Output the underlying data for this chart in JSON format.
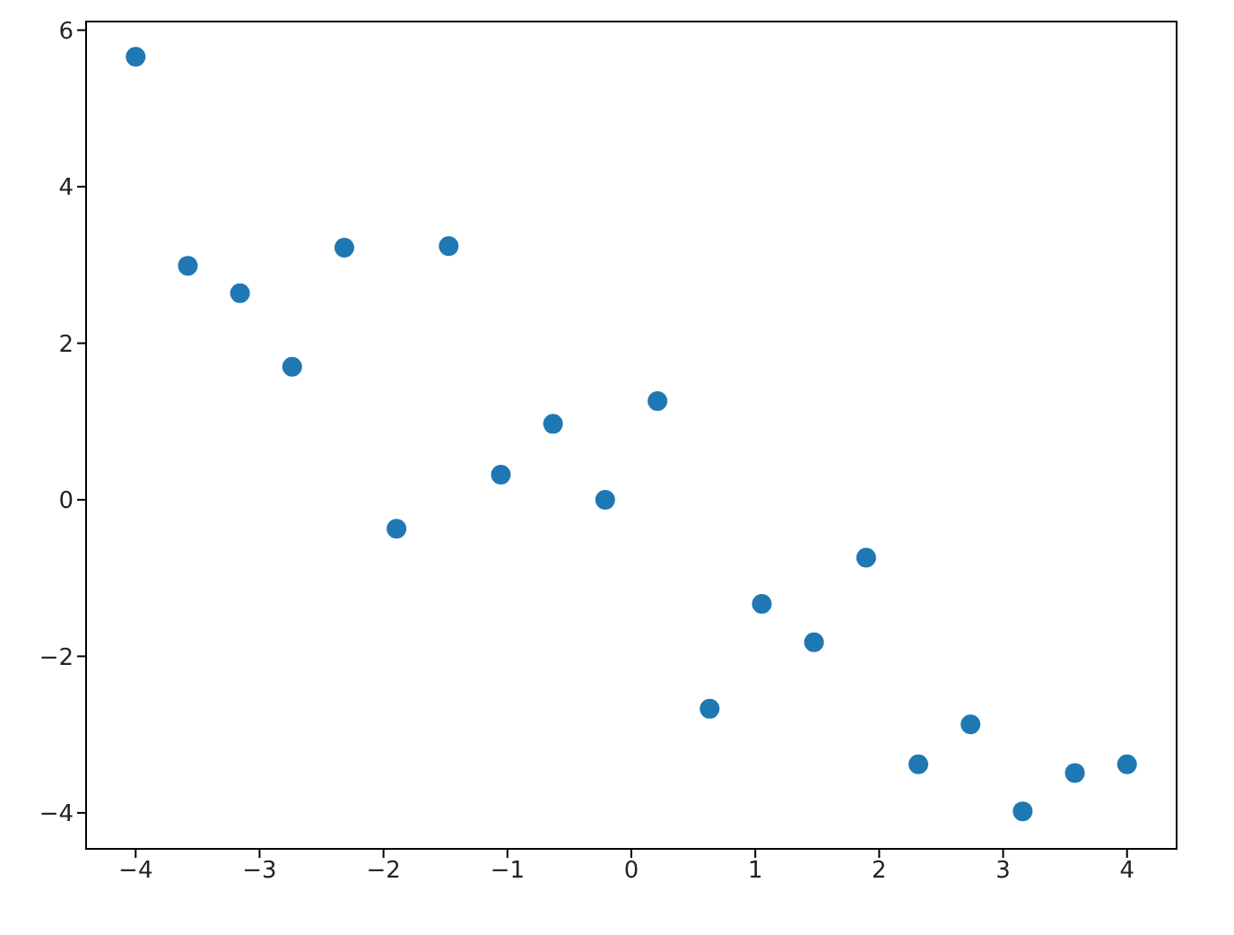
{
  "chart_data": {
    "type": "scatter",
    "x": [
      -4,
      -3.579,
      -3.158,
      -2.737,
      -2.316,
      -1.895,
      -1.474,
      -1.053,
      -0.632,
      -0.211,
      0.211,
      0.632,
      1.053,
      1.474,
      1.895,
      2.316,
      2.737,
      3.158,
      3.579,
      4
    ],
    "series": [
      {
        "color": "#1f77b4",
        "values": [
          5.66,
          2.99,
          2.64,
          1.7,
          3.22,
          -0.37,
          3.24,
          0.32,
          0.97,
          0,
          1.26,
          -2.67,
          -1.33,
          -1.82,
          -0.74,
          -3.38,
          -2.87,
          -3.98,
          -3.49,
          -3.38
        ]
      }
    ],
    "xlim": [
      -4.4,
      4.4
    ],
    "ylim": [
      -4.46,
      6.11
    ],
    "xticks": [
      {
        "value": -4,
        "label": "−4"
      },
      {
        "value": -3,
        "label": "−3"
      },
      {
        "value": -2,
        "label": "−2"
      },
      {
        "value": -1,
        "label": "−1"
      },
      0,
      1,
      2,
      3,
      4
    ],
    "yticks": [
      {
        "value": -4,
        "label": "−4"
      },
      {
        "value": -2,
        "label": "−2"
      },
      0,
      2,
      4,
      6
    ],
    "grid": false,
    "legend": false,
    "marker": "circle"
  }
}
